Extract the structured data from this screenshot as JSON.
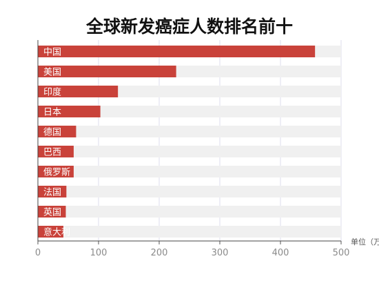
{
  "chart_data": {
    "type": "bar",
    "orientation": "horizontal",
    "title": "全球新发癌症人数排名前十",
    "unit_label": "单位（万",
    "categories": [
      "中国",
      "美国",
      "印度",
      "日本",
      "德国",
      "巴西",
      "俄罗斯",
      "法国",
      "英国",
      "意大利"
    ],
    "values": [
      457,
      228,
      132,
      103,
      63,
      59,
      59,
      47,
      46,
      42
    ],
    "xlim": [
      0,
      500
    ],
    "xticks": [
      "0",
      "100",
      "200",
      "300",
      "400",
      "500"
    ],
    "grid": true,
    "bar_color": "#c9423a",
    "track_color": "#f0f0f0",
    "grid_color": "#dcdcee"
  }
}
